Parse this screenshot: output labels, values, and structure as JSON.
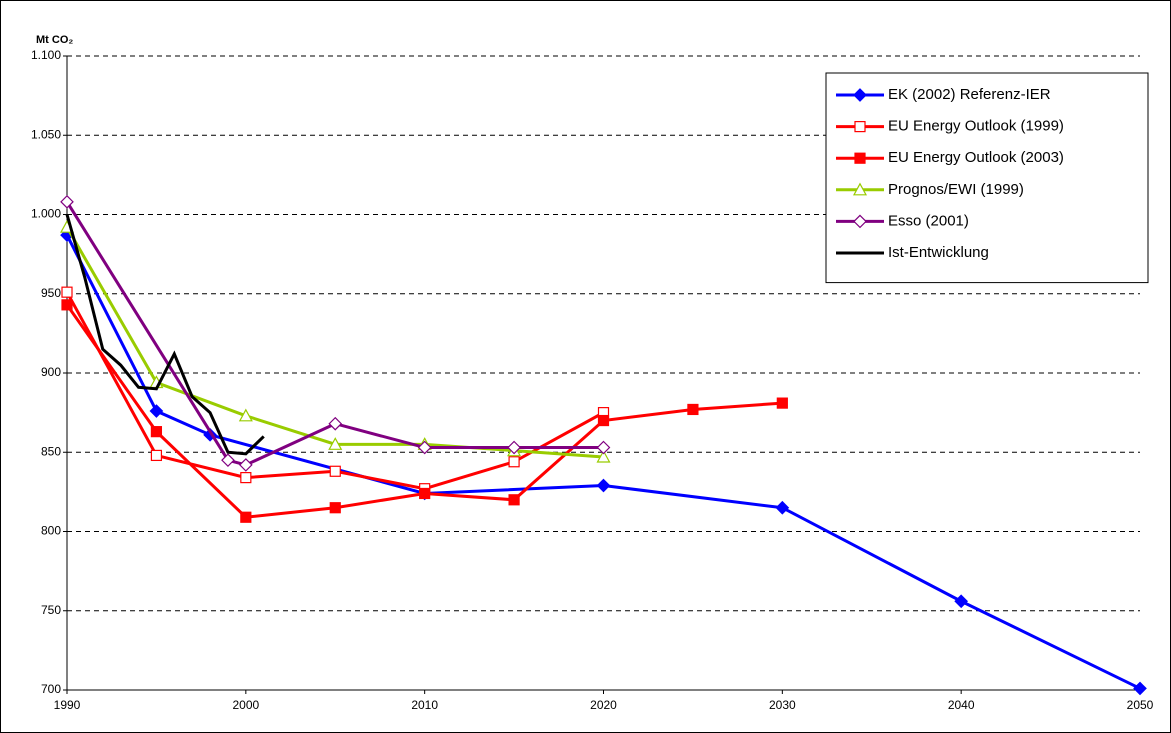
{
  "chart_data": {
    "type": "line",
    "y_label": "Mt CO₂",
    "xlim": [
      1990,
      2050
    ],
    "xticks": [
      1990,
      2000,
      2010,
      2020,
      2030,
      2040,
      2050
    ],
    "ylim": [
      700,
      1100
    ],
    "yticks": [
      700,
      750,
      800,
      850,
      900,
      950,
      {
        "value": 1000,
        "label": "1.000"
      },
      {
        "value": 1050,
        "label": "1.050"
      },
      {
        "value": 1100,
        "label": "1.100"
      }
    ],
    "grid": true,
    "legend": "top-right",
    "series": [
      {
        "name": "EK (2002) Referenz-IER",
        "color": "#0000ff",
        "marker": "diamond",
        "filled": true,
        "x": [
          1990,
          1995,
          1998,
          2010,
          2020,
          2030,
          2040,
          2050
        ],
        "values": [
          987,
          876,
          861,
          824,
          829,
          815,
          756,
          701
        ]
      },
      {
        "name": "EU Energy Outlook (1999)",
        "color": "#ff0000",
        "marker": "square",
        "filled": false,
        "x": [
          1990,
          1995,
          2000,
          2005,
          2010,
          2015,
          2020
        ],
        "values": [
          951,
          848,
          834,
          838,
          827,
          844,
          875
        ]
      },
      {
        "name": "EU Energy Outlook (2003)",
        "color": "#ff0000",
        "marker": "square",
        "filled": true,
        "x": [
          1990,
          1995,
          2000,
          2005,
          2010,
          2015,
          2020,
          2025,
          2030
        ],
        "values": [
          943,
          863,
          809,
          815,
          824,
          820,
          870,
          877,
          881
        ]
      },
      {
        "name": "Prognos/EWI (1999)",
        "color": "#99cc00",
        "marker": "triangle",
        "filled": false,
        "x": [
          1990,
          1995,
          2000,
          2005,
          2010,
          2015,
          2020
        ],
        "values": [
          992,
          894,
          873,
          855,
          855,
          851,
          847
        ]
      },
      {
        "name": "Esso (2001)",
        "color": "#800080",
        "marker": "diamond",
        "filled": false,
        "x": [
          1990,
          1999,
          2000,
          2005,
          2010,
          2015,
          2020
        ],
        "values": [
          1008,
          845,
          842,
          868,
          853,
          853,
          853
        ]
      },
      {
        "name": "Ist-Entwicklung",
        "color": "#000000",
        "marker": "none",
        "filled": false,
        "x": [
          1990,
          1991,
          1992,
          1993,
          1994,
          1995,
          1996,
          1997,
          1998,
          1999,
          2000,
          2001
        ],
        "values": [
          1000,
          960,
          915,
          905,
          891,
          890,
          912,
          885,
          875,
          850,
          849,
          860
        ]
      }
    ]
  }
}
